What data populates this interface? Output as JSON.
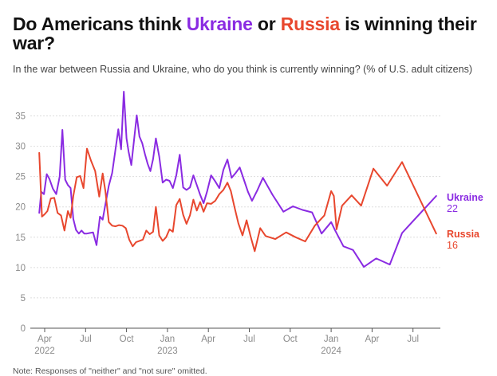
{
  "title": {
    "part1": "Do Americans think ",
    "ukraine": "Ukraine",
    "part2": " or ",
    "russia": "Russia",
    "part3": " is winning their war?"
  },
  "subtitle": "In the war between Russia and Ukraine, who do you think is currently winning? (% of U.S. adult citizens)",
  "note": "Note: Responses of \"neither\" and \"not sure\" omitted.",
  "colors": {
    "ukraine": "#8a2be2",
    "russia": "#e8472e",
    "grid": "#dddddd",
    "axis": "#555555"
  },
  "chart_data": {
    "type": "line",
    "title": "",
    "xlabel": "",
    "ylabel": "",
    "ylim": [
      0,
      35
    ],
    "yticks": [
      0,
      5,
      10,
      15,
      20,
      25,
      30,
      35
    ],
    "xlim": [
      0,
      29.7
    ],
    "xticks": [
      {
        "m": 0,
        "label": "Apr",
        "sub": "2022"
      },
      {
        "m": 3,
        "label": "Jul",
        "sub": ""
      },
      {
        "m": 6,
        "label": "Oct",
        "sub": ""
      },
      {
        "m": 9,
        "label": "Jan",
        "sub": "2023"
      },
      {
        "m": 12,
        "label": "Apr",
        "sub": ""
      },
      {
        "m": 15,
        "label": "Jul",
        "sub": ""
      },
      {
        "m": 18,
        "label": "Oct",
        "sub": ""
      },
      {
        "m": 21,
        "label": "Jan",
        "sub": "2024"
      },
      {
        "m": 24,
        "label": "Apr",
        "sub": ""
      },
      {
        "m": 27,
        "label": "Jul",
        "sub": ""
      }
    ],
    "x_unit": "months since April 2022",
    "series": [
      {
        "name": "Ukraine",
        "end_label": "22",
        "x": [
          -0.4,
          -0.25,
          -0.05,
          0.15,
          0.35,
          0.6,
          0.85,
          1.1,
          1.3,
          1.5,
          1.7,
          1.9,
          2.1,
          2.3,
          2.5,
          2.7,
          2.9,
          3.1,
          3.3,
          3.55,
          3.8,
          4.05,
          4.25,
          4.45,
          4.7,
          4.95,
          5.2,
          5.4,
          5.6,
          5.8,
          6.0,
          6.15,
          6.35,
          6.55,
          6.75,
          6.95,
          7.15,
          7.35,
          7.55,
          7.75,
          7.95,
          8.15,
          8.4,
          8.65,
          8.9,
          9.15,
          9.4,
          9.65,
          9.9,
          10.15,
          10.4,
          10.65,
          10.9,
          11.15,
          11.4,
          11.65,
          11.9,
          12.2,
          12.5,
          12.8,
          13.1,
          13.4,
          13.7,
          14.0,
          14.3,
          14.6,
          14.9,
          15.2,
          15.6,
          16.0,
          16.7,
          17.5,
          18.2,
          18.9,
          19.6,
          20.3,
          21.0,
          21.3,
          21.9,
          22.6,
          23.4,
          24.3,
          25.3,
          26.2,
          28.7
        ],
        "values": [
          19.0,
          22.5,
          22.1,
          25.4,
          24.6,
          23.0,
          22.1,
          25.0,
          32.7,
          24.5,
          23.6,
          23.1,
          18.0,
          16.2,
          15.6,
          16.1,
          15.6,
          15.6,
          15.7,
          15.8,
          13.7,
          18.4,
          17.9,
          20.4,
          23.5,
          25.6,
          29.6,
          32.8,
          29.5,
          39.0,
          31.3,
          29.1,
          26.9,
          31.0,
          35.1,
          31.6,
          30.5,
          28.7,
          27.1,
          25.9,
          27.9,
          31.3,
          28.3,
          24.0,
          24.5,
          24.3,
          23.1,
          25.2,
          28.6,
          23.2,
          22.8,
          23.2,
          25.2,
          23.6,
          22.0,
          20.6,
          22.5,
          25.2,
          24.2,
          23.1,
          26.1,
          27.8,
          24.8,
          25.6,
          26.5,
          24.5,
          22.5,
          21.0,
          22.8,
          24.8,
          22.0,
          19.2,
          20.1,
          19.5,
          19.1,
          15.6,
          17.5,
          16.1,
          13.5,
          12.9,
          10.1,
          11.5,
          10.5,
          15.7,
          21.8
        ]
      },
      {
        "name": "Russia",
        "end_label": "16",
        "x": [
          -0.4,
          -0.2,
          0.0,
          0.2,
          0.45,
          0.7,
          0.95,
          1.2,
          1.45,
          1.7,
          1.9,
          2.1,
          2.35,
          2.6,
          2.85,
          3.1,
          3.4,
          3.7,
          4.0,
          4.25,
          4.45,
          4.7,
          4.95,
          5.2,
          5.45,
          5.7,
          5.95,
          6.2,
          6.45,
          6.7,
          6.95,
          7.2,
          7.45,
          7.7,
          7.95,
          8.15,
          8.4,
          8.65,
          8.9,
          9.15,
          9.4,
          9.65,
          9.9,
          10.15,
          10.4,
          10.65,
          10.9,
          11.15,
          11.4,
          11.65,
          11.9,
          12.2,
          12.5,
          12.8,
          13.1,
          13.4,
          13.65,
          13.9,
          14.2,
          14.5,
          14.8,
          15.1,
          15.4,
          15.8,
          16.2,
          16.9,
          17.7,
          18.4,
          19.1,
          19.8,
          20.5,
          21.0,
          21.2,
          21.4,
          21.8,
          22.5,
          23.2,
          24.1,
          25.1,
          26.2,
          28.7
        ],
        "values": [
          28.9,
          18.4,
          18.8,
          19.3,
          21.4,
          21.5,
          19.0,
          18.6,
          16.1,
          19.3,
          18.2,
          21.8,
          24.9,
          25.1,
          23.1,
          29.6,
          27.6,
          25.9,
          21.7,
          25.5,
          22.6,
          17.5,
          16.9,
          16.8,
          17.0,
          16.9,
          16.5,
          14.6,
          13.5,
          14.2,
          14.4,
          14.6,
          16.1,
          15.5,
          15.9,
          20.0,
          15.3,
          14.4,
          15.0,
          16.3,
          15.9,
          20.3,
          21.3,
          18.7,
          17.2,
          18.6,
          21.2,
          19.4,
          20.8,
          19.2,
          20.6,
          20.5,
          21.0,
          22.1,
          22.8,
          24.0,
          22.6,
          20.1,
          17.3,
          15.3,
          17.8,
          15.1,
          12.7,
          16.5,
          15.2,
          14.7,
          15.8,
          15.0,
          14.3,
          16.9,
          18.6,
          22.6,
          21.8,
          16.3,
          20.2,
          21.9,
          20.2,
          26.3,
          23.5,
          27.4,
          15.6
        ]
      }
    ]
  }
}
